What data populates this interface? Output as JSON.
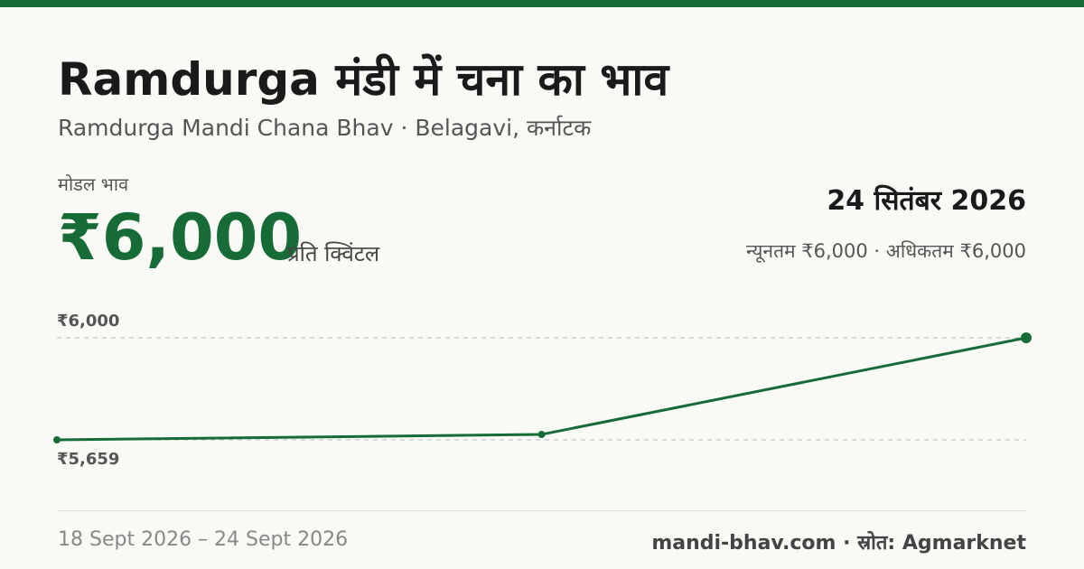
{
  "header": {
    "title": "Ramdurga मंडी में चना का भाव",
    "subtitle": "Ramdurga Mandi Chana Bhav · Belagavi, कर्नाटक"
  },
  "price": {
    "label": "मोडल भाव",
    "value": "₹6,000",
    "unit": "प्रति क्विंटल",
    "date": "24 सितंबर 2026",
    "range": "न्यूनतम ₹6,000 · अधिकतम ₹6,000"
  },
  "chart_data": {
    "type": "line",
    "categories": [
      null,
      null,
      null
    ],
    "series": [
      {
        "color": "#176b37",
        "values": [
          5659,
          5677,
          6000
        ]
      }
    ],
    "ylim": [
      5659,
      6000
    ],
    "yticks": [
      {
        "value": 6000,
        "label": "₹6,000"
      },
      {
        "value": 5659,
        "label": "₹5,659"
      }
    ],
    "grid": true
  },
  "footer": {
    "range": "18 Sept 2026 – 24 Sept 2026",
    "source": "mandi-bhav.com · स्रोत: Agmarknet"
  }
}
